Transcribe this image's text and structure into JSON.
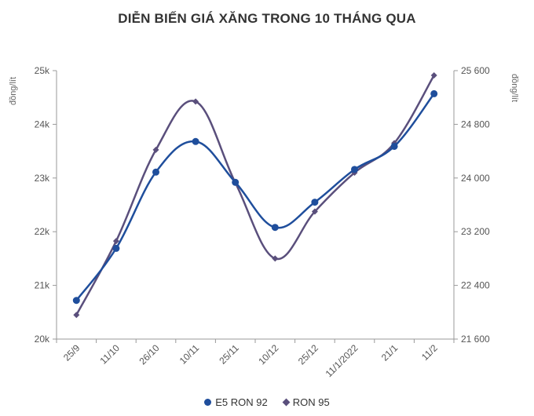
{
  "chart_data": {
    "type": "line",
    "title": "DIỄN BIẾN GIÁ XĂNG TRONG 10 THÁNG QUA",
    "categories": [
      "25/9",
      "11/10",
      "26/10",
      "10/11",
      "25/11",
      "10/12",
      "25/12",
      "11/1/2022",
      "21/1",
      "11/2"
    ],
    "y_left": {
      "label": "đồng/lít",
      "ylim": [
        20000,
        25000
      ],
      "ticks": [
        20000,
        21000,
        22000,
        23000,
        24000,
        25000
      ],
      "tick_labels": [
        "20k",
        "21k",
        "22k",
        "23k",
        "24k",
        "25k"
      ]
    },
    "y_right": {
      "label": "đồng/lít",
      "ylim": [
        21600,
        25600
      ],
      "ticks": [
        21600,
        22400,
        23200,
        24000,
        24800,
        25600
      ],
      "tick_labels": [
        "21 600",
        "22 400",
        "23 200",
        "24 000",
        "24 800",
        "25 600"
      ]
    },
    "series": [
      {
        "name": "E5 RON 92",
        "axis": "left",
        "color": "#1f4e9c",
        "marker": "circle",
        "values": [
          20720,
          21690,
          23110,
          23680,
          22920,
          22080,
          22550,
          23160,
          23590,
          24570
        ]
      },
      {
        "name": "RON 95",
        "axis": "right",
        "color": "#5a4f7c",
        "marker": "diamond",
        "values": [
          21960,
          23060,
          24420,
          25140,
          23930,
          22800,
          23500,
          24080,
          24520,
          25530
        ]
      }
    ],
    "grid": false,
    "legend": "bottom-center"
  }
}
